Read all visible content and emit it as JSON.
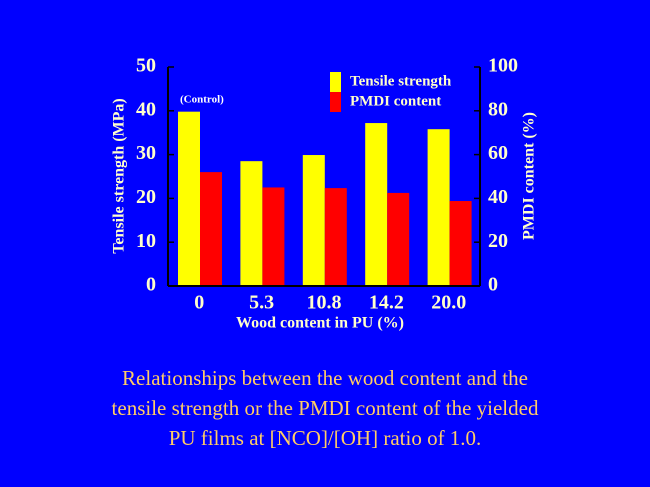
{
  "chart_data": {
    "type": "bar",
    "categories": [
      "0",
      "5.3",
      "10.8",
      "14.2",
      "20.0"
    ],
    "series": [
      {
        "name": "Tensile strength",
        "color": "#ffff00",
        "values": [
          39.8,
          28.5,
          29.9,
          37.2,
          35.8
        ]
      },
      {
        "name": "PMDI content",
        "color": "#ff0000",
        "values": [
          52,
          45,
          44.7,
          42.5,
          38.8
        ],
        "axis": "y2"
      }
    ],
    "xlabel": "Wood content in PU (%)",
    "ylabel": "Tensile strength (MPa)",
    "y2label": "PMDI content (%)",
    "ylim": [
      0,
      50
    ],
    "yticks": [
      0,
      10,
      20,
      30,
      40,
      50
    ],
    "y2lim": [
      0,
      100
    ],
    "y2ticks": [
      0,
      20,
      40,
      60,
      80,
      100
    ],
    "annotation": "(Control)",
    "legend": "upper-right",
    "background": "#0000ff",
    "caption": [
      "Relationships between the wood content and the",
      "tensile strength or the PMDI content of the yielded",
      "PU films at [NCO]/[OH] ratio of 1.0."
    ]
  }
}
